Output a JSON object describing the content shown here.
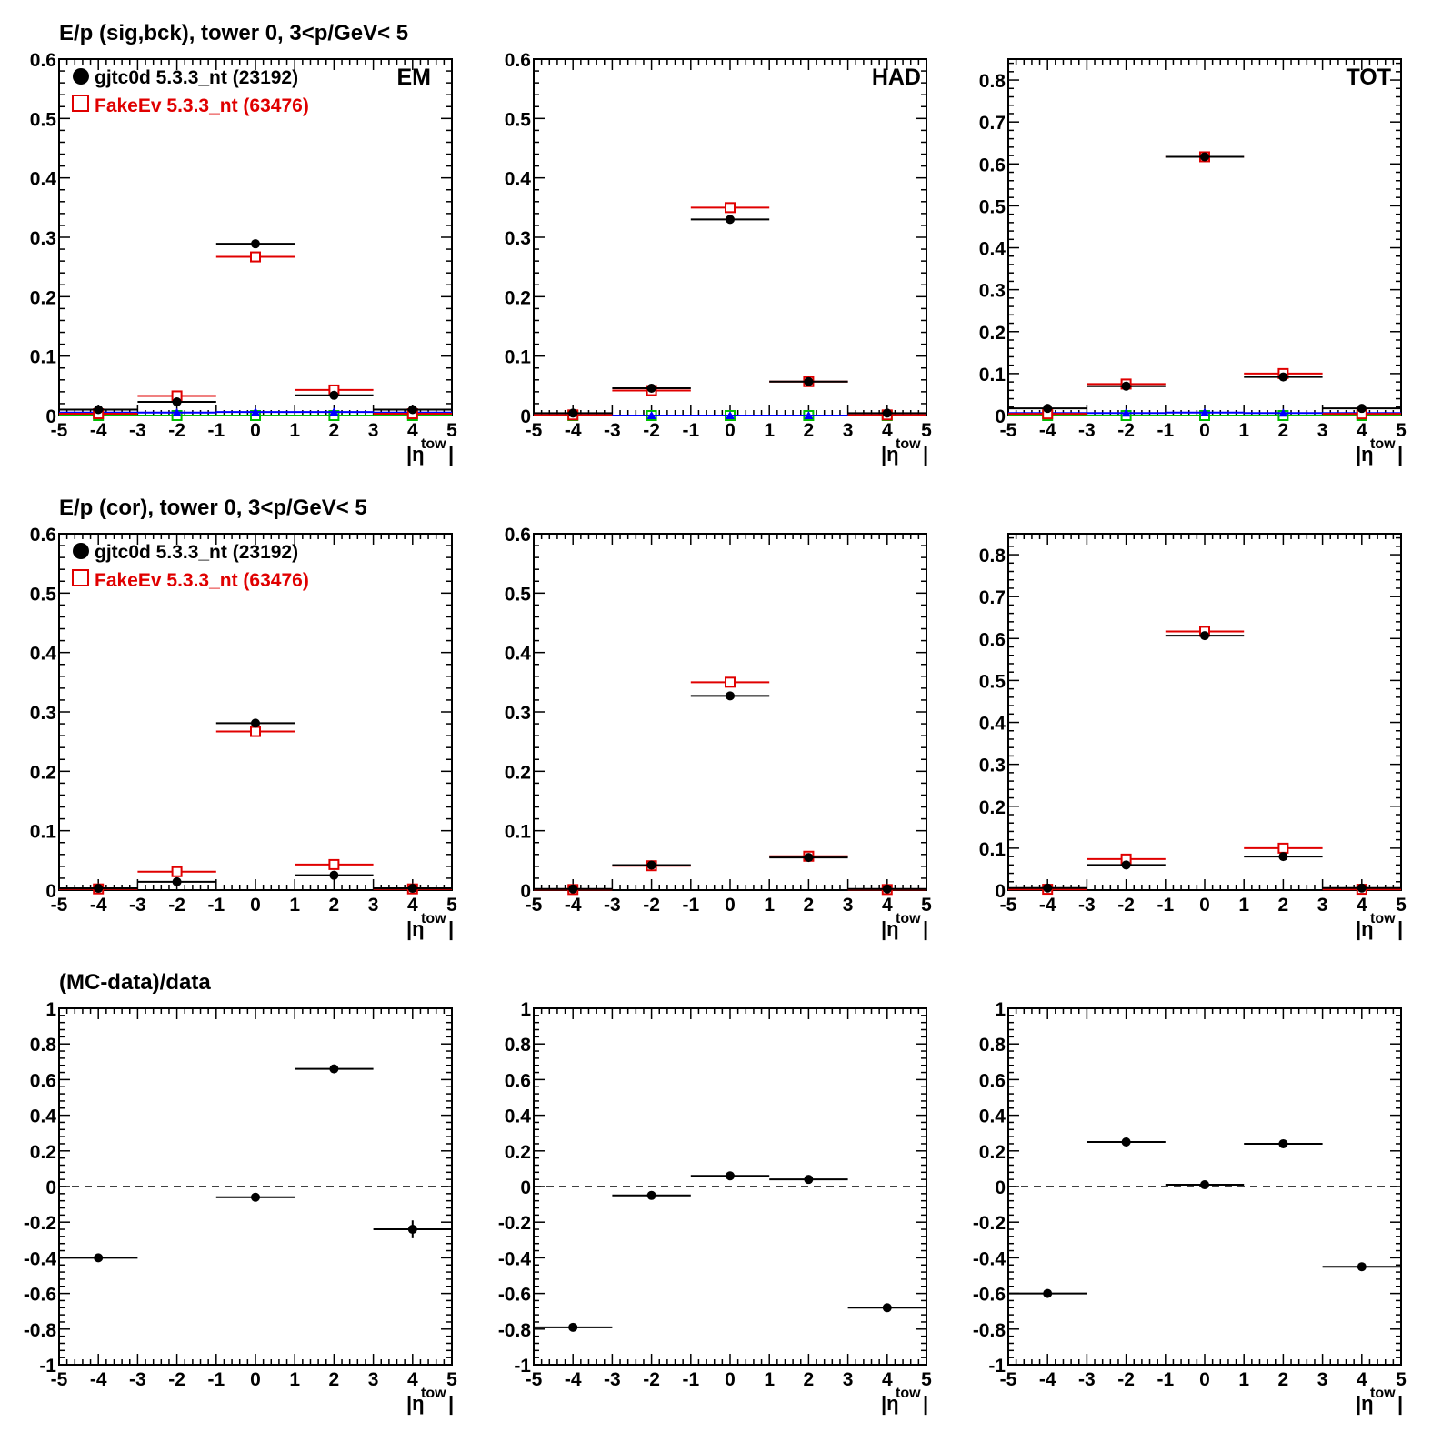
{
  "colors": {
    "data": "#000000",
    "mc": "#e00000",
    "sig": "#0000ff",
    "bck": "#00c000",
    "frame": "#000000"
  },
  "row_titles": [
    "E/p (sig,bck), tower 0,  3<p/GeV< 5",
    "E/p (cor), tower 0,  3<p/GeV< 5",
    "(MC-data)/data"
  ],
  "legend": {
    "data_label": "gjtc0d 5.3.3_nt (23192)",
    "mc_label": "FakeEv 5.3.3_nt (63476)"
  },
  "panel_labels": [
    "EM",
    "HAD",
    "TOT"
  ],
  "axis": {
    "xlabel": "|η",
    "xlabel_sup": "tow",
    "xlabel_close": "|",
    "x_ticks": [
      "-5",
      "-4",
      "-3",
      "-2",
      "-1",
      "0",
      "1",
      "2",
      "3",
      "4",
      "5"
    ]
  },
  "chart_data": [
    {
      "type": "scatter",
      "row": 0,
      "col": 0,
      "label": "EM",
      "xlim": [
        -5,
        5
      ],
      "ylim": [
        0,
        0.6
      ],
      "y_ticks": [
        "0",
        "0.1",
        "0.2",
        "0.3",
        "0.4",
        "0.5",
        "0.6"
      ],
      "x_bins": [
        [
          -5,
          -3
        ],
        [
          -3,
          -1
        ],
        [
          -1,
          1
        ],
        [
          1,
          3
        ],
        [
          3,
          5
        ]
      ],
      "x": [
        -4,
        -2,
        0,
        2,
        4
      ],
      "series": [
        {
          "name": "gjtc0d 5.3.3_nt (23192)",
          "marker": "dot",
          "values": [
            0.01,
            0.023,
            0.289,
            0.034,
            0.01
          ]
        },
        {
          "name": "FakeEv 5.3.3_nt (63476)",
          "marker": "open-square",
          "values": [
            0.003,
            0.033,
            0.267,
            0.043,
            0.003
          ]
        },
        {
          "marker": "triangle",
          "values": [
            0.005,
            0.005,
            0.006,
            0.006,
            0.005
          ]
        },
        {
          "marker": "open-square",
          "values": [
            0,
            0,
            0,
            0,
            0
          ]
        }
      ]
    },
    {
      "type": "scatter",
      "row": 0,
      "col": 1,
      "label": "HAD",
      "xlim": [
        -5,
        5
      ],
      "ylim": [
        0,
        0.6
      ],
      "y_ticks": [
        "0",
        "0.1",
        "0.2",
        "0.3",
        "0.4",
        "0.5",
        "0.6"
      ],
      "x_bins": [
        [
          -5,
          -3
        ],
        [
          -3,
          -1
        ],
        [
          -1,
          1
        ],
        [
          1,
          3
        ],
        [
          3,
          5
        ]
      ],
      "x": [
        -4,
        -2,
        0,
        2,
        4
      ],
      "series": [
        {
          "name": "gjtc0d 5.3.3_nt (23192)",
          "marker": "dot",
          "values": [
            0.004,
            0.046,
            0.33,
            0.057,
            0.004
          ]
        },
        {
          "name": "FakeEv 5.3.3_nt (63476)",
          "marker": "open-square",
          "values": [
            0.001,
            0.042,
            0.35,
            0.057,
            0.001
          ]
        },
        {
          "marker": "triangle",
          "values": [
            0.001,
            0,
            0,
            0,
            0.001
          ]
        },
        {
          "marker": "open-square",
          "values": [
            0,
            0,
            0,
            0,
            0
          ]
        }
      ]
    },
    {
      "type": "scatter",
      "row": 0,
      "col": 2,
      "label": "TOT",
      "xlim": [
        -5,
        5
      ],
      "ylim": [
        0,
        0.85
      ],
      "y_ticks": [
        "0",
        "0.1",
        "0.2",
        "0.3",
        "0.4",
        "0.5",
        "0.6",
        "0.7",
        "0.8"
      ],
      "x_bins": [
        [
          -5,
          -3
        ],
        [
          -3,
          -1
        ],
        [
          -1,
          1
        ],
        [
          1,
          3
        ],
        [
          3,
          5
        ]
      ],
      "x": [
        -4,
        -2,
        0,
        2,
        4
      ],
      "series": [
        {
          "name": "gjtc0d 5.3.3_nt (23192)",
          "marker": "dot",
          "values": [
            0.017,
            0.07,
            0.617,
            0.092,
            0.017
          ]
        },
        {
          "name": "FakeEv 5.3.3_nt (63476)",
          "marker": "open-square",
          "values": [
            0.004,
            0.075,
            0.617,
            0.1,
            0.004
          ]
        },
        {
          "marker": "triangle",
          "values": [
            0.006,
            0.006,
            0.007,
            0.006,
            0.006
          ]
        },
        {
          "marker": "open-square",
          "values": [
            0,
            0,
            0,
            0,
            0
          ]
        }
      ]
    },
    {
      "type": "scatter",
      "row": 1,
      "col": 0,
      "xlim": [
        -5,
        5
      ],
      "ylim": [
        0,
        0.6
      ],
      "y_ticks": [
        "0",
        "0.1",
        "0.2",
        "0.3",
        "0.4",
        "0.5",
        "0.6"
      ],
      "x_bins": [
        [
          -5,
          -3
        ],
        [
          -3,
          -1
        ],
        [
          -1,
          1
        ],
        [
          1,
          3
        ],
        [
          3,
          5
        ]
      ],
      "x": [
        -4,
        -2,
        0,
        2,
        4
      ],
      "series": [
        {
          "name": "gjtc0d 5.3.3_nt (23192)",
          "marker": "dot",
          "values": [
            0.003,
            0.014,
            0.281,
            0.025,
            0.003
          ]
        },
        {
          "name": "FakeEv 5.3.3_nt (63476)",
          "marker": "open-square",
          "values": [
            0.002,
            0.031,
            0.267,
            0.043,
            0.002
          ]
        }
      ]
    },
    {
      "type": "scatter",
      "row": 1,
      "col": 1,
      "xlim": [
        -5,
        5
      ],
      "ylim": [
        0,
        0.6
      ],
      "y_ticks": [
        "0",
        "0.1",
        "0.2",
        "0.3",
        "0.4",
        "0.5",
        "0.6"
      ],
      "x_bins": [
        [
          -5,
          -3
        ],
        [
          -3,
          -1
        ],
        [
          -1,
          1
        ],
        [
          1,
          3
        ],
        [
          3,
          5
        ]
      ],
      "x": [
        -4,
        -2,
        0,
        2,
        4
      ],
      "series": [
        {
          "name": "gjtc0d 5.3.3_nt (23192)",
          "marker": "dot",
          "values": [
            0.002,
            0.042,
            0.327,
            0.055,
            0.002
          ]
        },
        {
          "name": "FakeEv 5.3.3_nt (63476)",
          "marker": "open-square",
          "values": [
            0.001,
            0.041,
            0.35,
            0.057,
            0.001
          ]
        }
      ]
    },
    {
      "type": "scatter",
      "row": 1,
      "col": 2,
      "xlim": [
        -5,
        5
      ],
      "ylim": [
        0,
        0.85
      ],
      "y_ticks": [
        "0",
        "0.1",
        "0.2",
        "0.3",
        "0.4",
        "0.5",
        "0.6",
        "0.7",
        "0.8"
      ],
      "x_bins": [
        [
          -5,
          -3
        ],
        [
          -3,
          -1
        ],
        [
          -1,
          1
        ],
        [
          1,
          3
        ],
        [
          3,
          5
        ]
      ],
      "x": [
        -4,
        -2,
        0,
        2,
        4
      ],
      "series": [
        {
          "name": "gjtc0d 5.3.3_nt (23192)",
          "marker": "dot",
          "values": [
            0.005,
            0.06,
            0.607,
            0.08,
            0.005
          ]
        },
        {
          "name": "FakeEv 5.3.3_nt (63476)",
          "marker": "open-square",
          "values": [
            0.002,
            0.074,
            0.617,
            0.1,
            0.002
          ]
        }
      ]
    },
    {
      "type": "scatter",
      "row": 2,
      "col": 0,
      "xlim": [
        -5,
        5
      ],
      "ylim": [
        -1,
        1
      ],
      "reference_line": 0,
      "y_ticks": [
        "-1",
        "-0.8",
        "-0.6",
        "-0.4",
        "-0.2",
        "0",
        "0.2",
        "0.4",
        "0.6",
        "0.8",
        "1"
      ],
      "x_bins": [
        [
          -5,
          -3
        ],
        [
          -1,
          1
        ],
        [
          1,
          3
        ],
        [
          3,
          5
        ]
      ],
      "x": [
        -4,
        0,
        2,
        4
      ],
      "series": [
        {
          "marker": "dot",
          "values": [
            -0.4,
            -0.06,
            0.66,
            -0.24
          ],
          "errors": [
            0.02,
            0.01,
            0.01,
            0.05
          ]
        }
      ]
    },
    {
      "type": "scatter",
      "row": 2,
      "col": 1,
      "xlim": [
        -5,
        5
      ],
      "ylim": [
        -1,
        1
      ],
      "reference_line": 0,
      "y_ticks": [
        "-1",
        "-0.8",
        "-0.6",
        "-0.4",
        "-0.2",
        "0",
        "0.2",
        "0.4",
        "0.6",
        "0.8",
        "1"
      ],
      "x_bins": [
        [
          -5,
          -3
        ],
        [
          -3,
          -1
        ],
        [
          -1,
          1
        ],
        [
          1,
          3
        ],
        [
          3,
          5
        ]
      ],
      "x": [
        -4,
        -2,
        0,
        2,
        4
      ],
      "series": [
        {
          "marker": "dot",
          "values": [
            -0.79,
            -0.05,
            0.06,
            0.04,
            -0.68
          ],
          "errors": [
            0.01,
            0.01,
            0.01,
            0.02,
            0.01
          ]
        }
      ]
    },
    {
      "type": "scatter",
      "row": 2,
      "col": 2,
      "xlim": [
        -5,
        5
      ],
      "ylim": [
        -1,
        1
      ],
      "reference_line": 0,
      "y_ticks": [
        "-1",
        "-0.8",
        "-0.6",
        "-0.4",
        "-0.2",
        "0",
        "0.2",
        "0.4",
        "0.6",
        "0.8",
        "1"
      ],
      "x_bins": [
        [
          -5,
          -3
        ],
        [
          -3,
          -1
        ],
        [
          -1,
          1
        ],
        [
          1,
          3
        ],
        [
          3,
          5
        ]
      ],
      "x": [
        -4,
        -2,
        0,
        2,
        4
      ],
      "series": [
        {
          "marker": "dot",
          "values": [
            -0.6,
            0.25,
            0.01,
            0.24,
            -0.45
          ],
          "errors": [
            0.01,
            0.01,
            0.01,
            0.01,
            0.01
          ]
        }
      ]
    }
  ]
}
